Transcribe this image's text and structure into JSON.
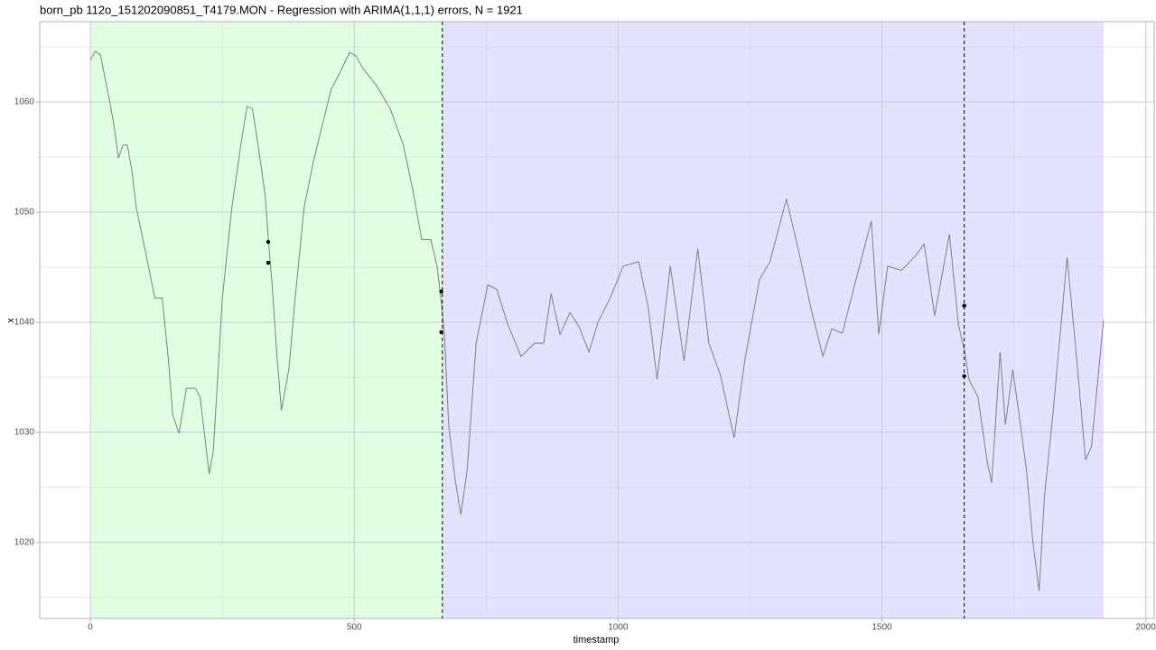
{
  "chart_data": {
    "type": "line",
    "title": "born_pb 112o_151202090851_T4179.MON - Regression with ARIMA(1,1,1) errors, N = 1921",
    "x_label": "timestamp",
    "y_label": "x",
    "xlim": [
      -96,
      2016
    ],
    "ylim": [
      1013.1,
      1067.3
    ],
    "xticks": [
      0,
      500,
      1000,
      1500,
      2000
    ],
    "yticks": [
      1020,
      1030,
      1040,
      1050,
      1060
    ],
    "xminor_ticks": [
      250,
      750,
      1250,
      1750
    ],
    "yminor_ticks": [
      1015,
      1025,
      1035,
      1045,
      1055,
      1065
    ],
    "grid": true,
    "regions": [
      {
        "start": 0,
        "end": 667,
        "color": "#e0ffe0"
      },
      {
        "start": 667,
        "end": 1920,
        "color": "#e3e3ff"
      }
    ],
    "vlines": [
      667,
      1656
    ],
    "series": [
      {
        "color": "#7f7f7f",
        "x": [
          0,
          9,
          19,
          36,
          45,
          53,
          62,
          70,
          79,
          87,
          105,
          122,
          136,
          148,
          156,
          168,
          182,
          199,
          208,
          225,
          233,
          250,
          268,
          285,
          297,
          307,
          319,
          331,
          338,
          345,
          353,
          362,
          376,
          388,
          405,
          422,
          439,
          456,
          473,
          491,
          503,
          516,
          542,
          568,
          593,
          611,
          628,
          645,
          657,
          666,
          671,
          679,
          691,
          702,
          714,
          731,
          753,
          770,
          791,
          816,
          842,
          859,
          873,
          890,
          909,
          926,
          945,
          962,
          985,
          1010,
          1039,
          1057,
          1074,
          1099,
          1125,
          1151,
          1172,
          1194,
          1220,
          1240,
          1268,
          1288,
          1319,
          1343,
          1365,
          1388,
          1405,
          1425,
          1451,
          1480,
          1494,
          1511,
          1537,
          1563,
          1580,
          1600,
          1628,
          1645,
          1657,
          1665,
          1682,
          1699,
          1708,
          1724,
          1734,
          1748,
          1760,
          1774,
          1786,
          1798,
          1808,
          1824,
          1851,
          1868,
          1886,
          1897,
          1920
        ],
        "values": [
          1063.8,
          1064.6,
          1064.3,
          1060.2,
          1057.8,
          1054.9,
          1056.1,
          1056.1,
          1053.7,
          1050.4,
          1046.3,
          1042.2,
          1042.2,
          1036.5,
          1031.6,
          1029.9,
          1034.0,
          1034.0,
          1033.2,
          1026.2,
          1028.3,
          1042.2,
          1050.4,
          1056.1,
          1059.6,
          1059.4,
          1055.7,
          1051.6,
          1047.1,
          1043.0,
          1037.3,
          1032.0,
          1035.7,
          1042.2,
          1050.4,
          1054.5,
          1057.8,
          1061.1,
          1062.7,
          1064.5,
          1064.2,
          1063.1,
          1061.5,
          1059.4,
          1056.1,
          1052.0,
          1047.5,
          1047.5,
          1045.1,
          1041.4,
          1038.9,
          1030.7,
          1025.8,
          1022.5,
          1026.6,
          1038.1,
          1043.4,
          1043.0,
          1039.8,
          1036.9,
          1038.1,
          1038.1,
          1042.6,
          1038.9,
          1040.9,
          1039.6,
          1037.3,
          1040.0,
          1042.2,
          1045.1,
          1045.5,
          1041.4,
          1034.8,
          1045.1,
          1036.5,
          1046.7,
          1038.1,
          1035.2,
          1029.5,
          1036.5,
          1043.9,
          1045.5,
          1051.2,
          1046.3,
          1041.4,
          1036.9,
          1039.4,
          1039.0,
          1043.9,
          1049.2,
          1038.9,
          1045.1,
          1044.7,
          1046.0,
          1047.1,
          1040.6,
          1048.0,
          1039.8,
          1037.3,
          1034.8,
          1033.2,
          1027.5,
          1025.4,
          1037.3,
          1030.7,
          1035.7,
          1031.6,
          1026.6,
          1020.1,
          1015.6,
          1024.2,
          1031.6,
          1045.9,
          1037.3,
          1027.5,
          1028.7,
          1040.2
        ]
      }
    ],
    "points": {
      "color": "#000000",
      "x": [
        337,
        337,
        665,
        665,
        1656,
        1656
      ],
      "y": [
        1047.3,
        1045.4,
        1042.8,
        1039.1,
        1041.5,
        1035.1
      ]
    }
  }
}
